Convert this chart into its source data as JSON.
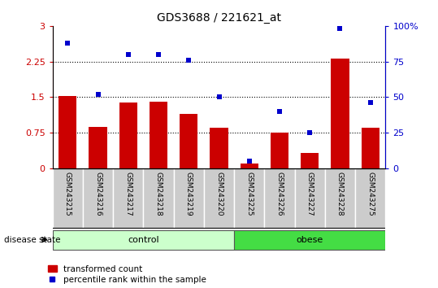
{
  "title": "GDS3688 / 221621_at",
  "samples": [
    "GSM243215",
    "GSM243216",
    "GSM243217",
    "GSM243218",
    "GSM243219",
    "GSM243220",
    "GSM243225",
    "GSM243226",
    "GSM243227",
    "GSM243228",
    "GSM243275"
  ],
  "bar_values": [
    1.53,
    0.88,
    1.38,
    1.4,
    1.15,
    0.85,
    0.1,
    0.75,
    0.32,
    2.32,
    0.85
  ],
  "scatter_values": [
    88,
    52,
    80,
    80,
    76,
    50,
    5,
    40,
    25,
    98,
    46
  ],
  "bar_color": "#cc0000",
  "scatter_color": "#0000cc",
  "ylim_left": [
    0,
    3
  ],
  "ylim_right": [
    0,
    100
  ],
  "yticks_left": [
    0,
    0.75,
    1.5,
    2.25,
    3
  ],
  "yticks_right": [
    0,
    25,
    50,
    75,
    100
  ],
  "hlines": [
    0.75,
    1.5,
    2.25
  ],
  "control_samples": 6,
  "obese_samples": 5,
  "control_label": "control",
  "obese_label": "obese",
  "disease_state_label": "disease state",
  "legend_bar_label": "transformed count",
  "legend_scatter_label": "percentile rank within the sample",
  "control_color": "#ccffcc",
  "obese_color": "#44dd44",
  "xticklabel_area_color": "#cccccc",
  "bar_width": 0.6,
  "figwidth": 5.39,
  "figheight": 3.54,
  "dpi": 100
}
